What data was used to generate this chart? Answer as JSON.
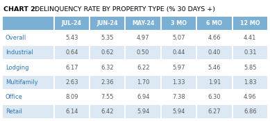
{
  "title_bold": "CHART 2:",
  "title_regular": " DELINQUENCY RATE BY PROPERTY TYPE (% 30 DAYS +)",
  "columns": [
    "JUL-24",
    "JUN-24",
    "MAY-24",
    "3 MO",
    "6 MO",
    "12 MO"
  ],
  "rows": [
    {
      "label": "Overall",
      "values": [
        5.43,
        5.35,
        4.97,
        5.07,
        4.66,
        4.41
      ]
    },
    {
      "label": "Industrial",
      "values": [
        0.64,
        0.62,
        0.5,
        0.44,
        0.4,
        0.31
      ]
    },
    {
      "label": "Lodging",
      "values": [
        6.17,
        6.32,
        6.22,
        5.97,
        5.46,
        5.85
      ]
    },
    {
      "label": "Multifamily",
      "values": [
        2.63,
        2.36,
        1.7,
        1.33,
        1.91,
        1.83
      ]
    },
    {
      "label": "Office",
      "values": [
        8.09,
        7.55,
        6.94,
        7.38,
        6.3,
        4.96
      ]
    },
    {
      "label": "Retail",
      "values": [
        6.14,
        6.42,
        5.94,
        5.94,
        6.27,
        6.86
      ]
    }
  ],
  "header_bg": "#7bafd4",
  "header_text_color": "#ffffff",
  "row_bg_odd": "#ffffff",
  "row_bg_even": "#dce9f5",
  "label_text_color": "#2e75b6",
  "value_text_color": "#595959",
  "title_color": "#000000",
  "border_color": "#ffffff",
  "background_color": "#ffffff",
  "fig_bg": "#f0f0f0"
}
